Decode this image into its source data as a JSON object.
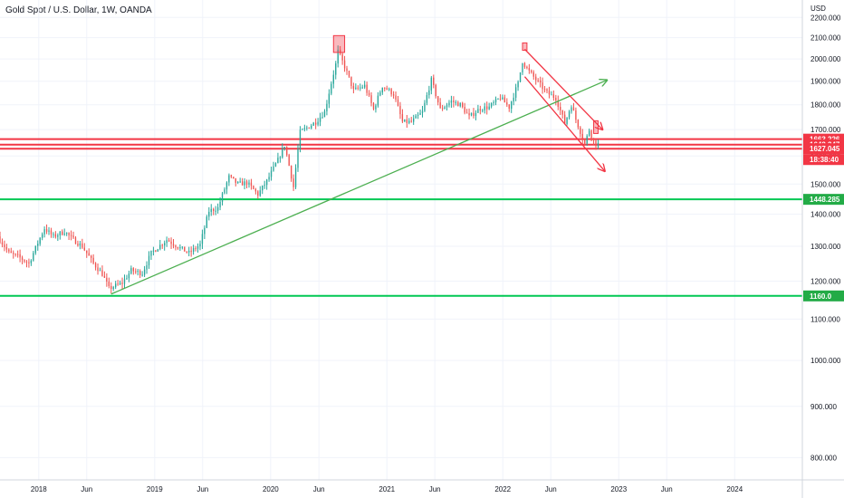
{
  "header": {
    "title": "Gold Spot / U.S. Dollar, 1W, OANDA",
    "currency": "USD"
  },
  "colors": {
    "up": "#26a69a",
    "down": "#ef5350",
    "grid": "#f0f3fa",
    "axis_line": "#d1d4dc",
    "red_level": "#f23645",
    "green_level": "#00c853",
    "trend_green": "#4caf50",
    "channel_red": "#f23645",
    "badge_green": "#22ab46",
    "badge_red": "#f23645"
  },
  "chart_data": {
    "type": "candlestick",
    "title": "Gold Spot / U.S. Dollar, 1W, OANDA",
    "y_unit": "USD",
    "y_scale": "log",
    "ylim": [
      760,
      2290
    ],
    "xlim": [
      "2017-09-01",
      "2024-08-01"
    ],
    "grid": true,
    "y_ticks": [
      "800.000",
      "900.000",
      "1000.000",
      "1100.000",
      "1200.000",
      "1300.000",
      "1400.000",
      "1500.000",
      "1600.000",
      "1700.000",
      "1800.000",
      "1900.000",
      "2000.000",
      "2100.000",
      "2200.000"
    ],
    "x_ticks": [
      {
        "label": "2018",
        "date": "2018-01-01"
      },
      {
        "label": "Jun",
        "date": "2018-06-01"
      },
      {
        "label": "2019",
        "date": "2019-01-01"
      },
      {
        "label": "Jun",
        "date": "2019-06-01"
      },
      {
        "label": "2020",
        "date": "2020-01-01"
      },
      {
        "label": "Jun",
        "date": "2020-06-01"
      },
      {
        "label": "2021",
        "date": "2021-01-01"
      },
      {
        "label": "Jun",
        "date": "2021-06-01"
      },
      {
        "label": "2022",
        "date": "2022-01-01"
      },
      {
        "label": "Jun",
        "date": "2022-06-01"
      },
      {
        "label": "2023",
        "date": "2023-01-01"
      },
      {
        "label": "Jun",
        "date": "2023-06-01"
      },
      {
        "label": "2024",
        "date": "2024-01-01"
      }
    ],
    "price_path": [
      [
        "2017-09-01",
        1330
      ],
      [
        "2017-10-06",
        1280
      ],
      [
        "2017-11-03",
        1270
      ],
      [
        "2017-12-08",
        1250
      ],
      [
        "2018-01-26",
        1355
      ],
      [
        "2018-02-23",
        1330
      ],
      [
        "2018-03-30",
        1345
      ],
      [
        "2018-04-27",
        1320
      ],
      [
        "2018-05-25",
        1300
      ],
      [
        "2018-06-29",
        1250
      ],
      [
        "2018-07-27",
        1220
      ],
      [
        "2018-08-17",
        1180
      ],
      [
        "2018-09-28",
        1195
      ],
      [
        "2018-10-26",
        1230
      ],
      [
        "2018-11-30",
        1222
      ],
      [
        "2018-12-28",
        1280
      ],
      [
        "2019-02-15",
        1320
      ],
      [
        "2019-03-29",
        1295
      ],
      [
        "2019-04-26",
        1280
      ],
      [
        "2019-05-31",
        1305
      ],
      [
        "2019-06-28",
        1410
      ],
      [
        "2019-07-26",
        1420
      ],
      [
        "2019-08-30",
        1525
      ],
      [
        "2019-09-27",
        1500
      ],
      [
        "2019-10-25",
        1505
      ],
      [
        "2019-11-29",
        1465
      ],
      [
        "2019-12-27",
        1510
      ],
      [
        "2020-01-31",
        1585
      ],
      [
        "2020-02-21",
        1640
      ],
      [
        "2020-03-20",
        1490
      ],
      [
        "2020-04-10",
        1690
      ],
      [
        "2020-05-29",
        1730
      ],
      [
        "2020-06-26",
        1770
      ],
      [
        "2020-07-31",
        1975
      ],
      [
        "2020-08-07",
        2035
      ],
      [
        "2020-08-28",
        1965
      ],
      [
        "2020-09-25",
        1860
      ],
      [
        "2020-10-30",
        1880
      ],
      [
        "2020-11-27",
        1780
      ],
      [
        "2020-12-25",
        1880
      ],
      [
        "2021-01-29",
        1845
      ],
      [
        "2021-02-26",
        1730
      ],
      [
        "2021-03-26",
        1730
      ],
      [
        "2021-04-30",
        1770
      ],
      [
        "2021-05-28",
        1905
      ],
      [
        "2021-06-25",
        1780
      ],
      [
        "2021-07-30",
        1815
      ],
      [
        "2021-08-27",
        1800
      ],
      [
        "2021-09-24",
        1750
      ],
      [
        "2021-10-29",
        1785
      ],
      [
        "2021-11-26",
        1790
      ],
      [
        "2021-12-31",
        1830
      ],
      [
        "2022-01-28",
        1790
      ],
      [
        "2022-02-25",
        1890
      ],
      [
        "2022-03-11",
        1990
      ],
      [
        "2022-03-25",
        1955
      ],
      [
        "2022-04-29",
        1895
      ],
      [
        "2022-05-27",
        1850
      ],
      [
        "2022-06-24",
        1828
      ],
      [
        "2022-07-22",
        1725
      ],
      [
        "2022-08-12",
        1800
      ],
      [
        "2022-08-26",
        1740
      ],
      [
        "2022-09-23",
        1645
      ],
      [
        "2022-10-07",
        1700
      ],
      [
        "2022-10-21",
        1655
      ],
      [
        "2022-10-28",
        1645
      ]
    ],
    "levels": [
      {
        "price": 1663.226,
        "color": "red",
        "label": "1663.226"
      },
      {
        "price": 1642.347,
        "color": "red",
        "label": "1642.347"
      },
      {
        "price": 1627.045,
        "color": "red",
        "label": "1627.045"
      },
      {
        "price": 1448.285,
        "color": "green",
        "label": "1448.285"
      },
      {
        "price": 1160.0,
        "color": "green",
        "label": "1160.0"
      }
    ],
    "countdown": "18:38:40",
    "trendline": {
      "from": [
        "2018-08-17",
        1165
      ],
      "to": [
        "2022-11-25",
        1905
      ]
    },
    "channel": [
      {
        "from": [
          "2022-03-11",
          2045
        ],
        "to": [
          "2022-11-11",
          1700
        ]
      },
      {
        "from": [
          "2022-03-11",
          1920
        ],
        "to": [
          "2022-11-18",
          1545
        ]
      }
    ],
    "highlight_boxes": [
      {
        "x0": "2020-07-17",
        "x1": "2020-08-21",
        "y0": 2030,
        "y1": 2110
      },
      {
        "x0": "2022-03-04",
        "x1": "2022-03-18",
        "y0": 2040,
        "y1": 2075
      },
      {
        "x0": "2022-10-14",
        "x1": "2022-10-28",
        "y0": 1685,
        "y1": 1735
      }
    ]
  }
}
